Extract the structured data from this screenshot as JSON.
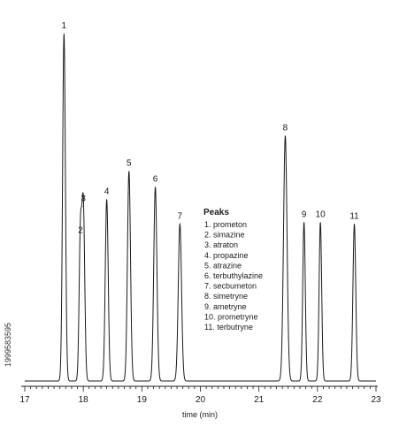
{
  "side_text": "1999583595",
  "chart_data": {
    "type": "line",
    "title": "",
    "xlabel": "time (min)",
    "ylabel": "",
    "xlim": [
      17,
      23
    ],
    "ylim": [
      0,
      100
    ],
    "x_ticks": [
      "17",
      "18",
      "19",
      "20",
      "21",
      "22",
      "23"
    ],
    "grid": false,
    "baseline": 1.5,
    "peaks": [
      {
        "label": "1",
        "time": 17.67,
        "height": 100.0,
        "width": 0.024
      },
      {
        "label": "2",
        "time": 17.95,
        "height": 42.0,
        "width": 0.022
      },
      {
        "label": "3",
        "time": 18.0,
        "height": 51.0,
        "width": 0.024
      },
      {
        "label": "4",
        "time": 18.4,
        "height": 53.0,
        "width": 0.025
      },
      {
        "label": "5",
        "time": 18.78,
        "height": 61.0,
        "width": 0.026
      },
      {
        "label": "6",
        "time": 19.23,
        "height": 56.5,
        "width": 0.027
      },
      {
        "label": "7",
        "time": 19.65,
        "height": 46.0,
        "width": 0.028
      },
      {
        "label": "8",
        "time": 21.45,
        "height": 71.0,
        "width": 0.03
      },
      {
        "label": "9",
        "time": 21.77,
        "height": 46.5,
        "width": 0.022
      },
      {
        "label": "10",
        "time": 22.05,
        "height": 46.5,
        "width": 0.022
      },
      {
        "label": "11",
        "time": 22.63,
        "height": 46.0,
        "width": 0.024
      }
    ],
    "legend": {
      "title": "Peaks",
      "items": [
        "1. prometon",
        "2. simazine",
        "3. atraton",
        "4. propazine",
        "5. atrazine",
        "6. terbuthylazine",
        "7. secbumeton",
        "8. simetryne",
        "9. ametryne",
        "10. prometryne",
        "11. terbutryne"
      ]
    }
  }
}
